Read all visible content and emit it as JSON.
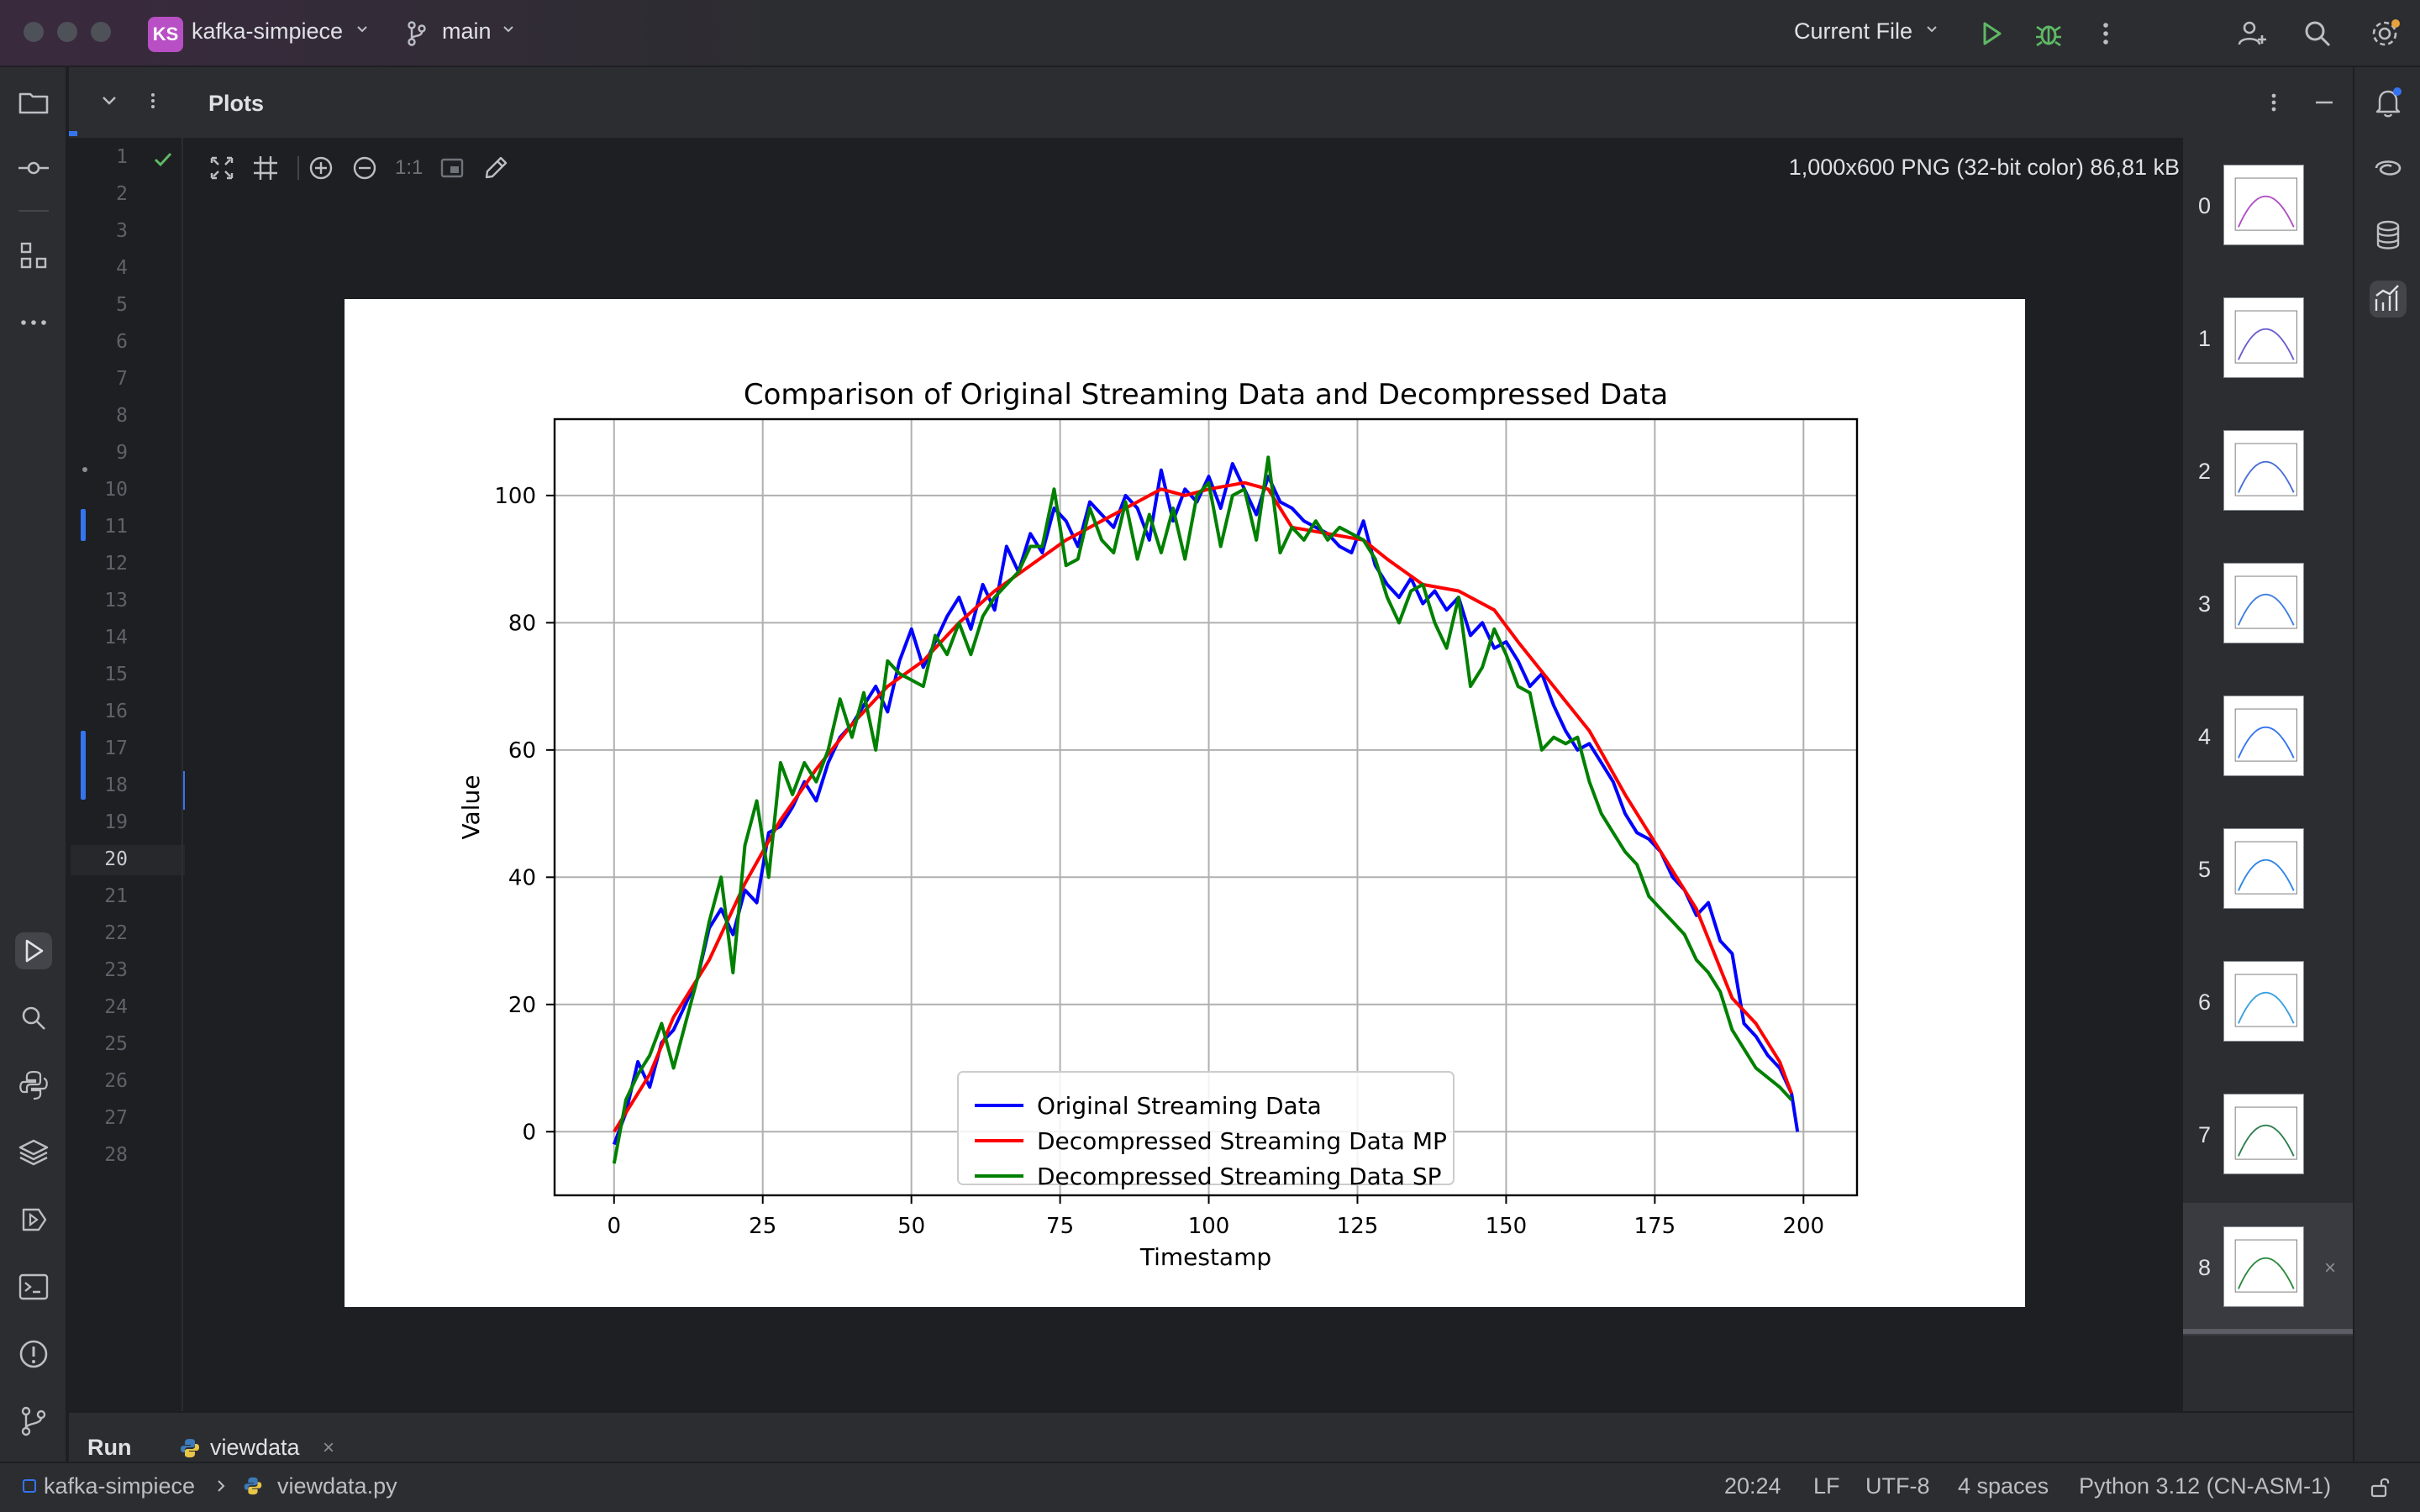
{
  "titlebar": {
    "project_badge": "KS",
    "project_name": "kafka-simpiece",
    "branch": "main",
    "run_config": "Current File"
  },
  "editor": {
    "line_numbers": [
      "1",
      "2",
      "3",
      "4",
      "5",
      "6",
      "7",
      "8",
      "9",
      "10",
      "11",
      "12",
      "13",
      "14",
      "15",
      "16",
      "17",
      "18",
      "19",
      "20",
      "21",
      "22",
      "23",
      "24",
      "25",
      "26",
      "27",
      "28"
    ],
    "current_line": "20"
  },
  "plots": {
    "title": "Plots",
    "zoom_reset_label": "1:1",
    "image_info": "1,000x600 PNG (32-bit color) 86,81 kB",
    "thumbnails": [
      "0",
      "1",
      "2",
      "3",
      "4",
      "5",
      "6",
      "7",
      "8"
    ],
    "selected_thumbnail": "8"
  },
  "run_panel": {
    "label": "Run",
    "tab": "viewdata"
  },
  "statusbar": {
    "project": "kafka-simpiece",
    "file": "viewdata.py",
    "position": "20:24",
    "line_sep": "LF",
    "encoding": "UTF-8",
    "indent": "4 spaces",
    "interpreter": "Python 3.12 (CN-ASM-1)"
  },
  "chart_data": {
    "type": "line",
    "title": "Comparison of Original Streaming Data and Decompressed Data",
    "xlabel": "Timestamp",
    "ylabel": "Value",
    "xlim": [
      -10,
      209
    ],
    "ylim": [
      -10,
      112
    ],
    "xticks": [
      0,
      25,
      50,
      75,
      100,
      125,
      150,
      175,
      200
    ],
    "yticks": [
      0,
      20,
      40,
      60,
      80,
      100
    ],
    "grid": true,
    "legend_position": "lower center",
    "series": [
      {
        "name": "Original Streaming Data",
        "color": "#0000ff",
        "x": [
          0,
          2,
          4,
          6,
          8,
          10,
          12,
          14,
          16,
          18,
          20,
          22,
          24,
          26,
          28,
          30,
          32,
          34,
          36,
          38,
          40,
          42,
          44,
          46,
          48,
          50,
          52,
          54,
          56,
          58,
          60,
          62,
          64,
          66,
          68,
          70,
          72,
          74,
          76,
          78,
          80,
          82,
          84,
          86,
          88,
          90,
          92,
          94,
          96,
          98,
          100,
          102,
          104,
          106,
          108,
          110,
          112,
          114,
          116,
          118,
          120,
          122,
          124,
          126,
          128,
          130,
          132,
          134,
          136,
          138,
          140,
          142,
          144,
          146,
          148,
          150,
          152,
          154,
          156,
          158,
          160,
          162,
          164,
          166,
          168,
          170,
          172,
          174,
          176,
          178,
          180,
          182,
          184,
          186,
          188,
          190,
          192,
          194,
          196,
          198,
          199
        ],
        "y": [
          -2,
          3,
          11,
          7,
          14,
          16,
          20,
          24,
          32,
          35,
          31,
          38,
          36,
          47,
          48,
          51,
          55,
          52,
          58,
          62,
          64,
          67,
          70,
          66,
          74,
          79,
          73,
          77,
          81,
          84,
          79,
          86,
          82,
          92,
          88,
          94,
          91,
          98,
          96,
          92,
          99,
          97,
          95,
          100,
          98,
          93,
          104,
          96,
          101,
          99,
          103,
          98,
          105,
          101,
          97,
          103,
          99,
          98,
          96,
          95,
          94,
          92,
          91,
          96,
          89,
          86,
          84,
          87,
          83,
          85,
          82,
          84,
          78,
          80,
          76,
          77,
          74,
          70,
          72,
          67,
          63,
          60,
          61,
          58,
          55,
          50,
          47,
          46,
          44,
          40,
          38,
          34,
          36,
          30,
          28,
          17,
          15,
          12,
          10,
          6,
          0
        ]
      },
      {
        "name": "Decompressed Streaming Data MP",
        "color": "#ff0000",
        "x": [
          0,
          6,
          10,
          16,
          22,
          28,
          34,
          40,
          46,
          52,
          58,
          64,
          70,
          76,
          82,
          88,
          92,
          96,
          100,
          106,
          110,
          114,
          120,
          126,
          130,
          136,
          142,
          148,
          152,
          158,
          164,
          170,
          176,
          182,
          188,
          192,
          196,
          198
        ],
        "y": [
          0,
          9,
          18,
          27,
          39,
          49,
          57,
          64,
          70,
          74,
          80,
          85,
          89,
          93,
          96,
          99,
          101,
          100,
          101,
          102,
          101,
          95,
          94,
          93,
          90,
          86,
          85,
          82,
          77,
          70,
          63,
          53,
          44,
          35,
          21,
          17,
          11,
          6
        ]
      },
      {
        "name": "Decompressed Streaming Data SP",
        "color": "#008000",
        "x": [
          0,
          2,
          4,
          6,
          8,
          10,
          12,
          14,
          16,
          18,
          20,
          22,
          24,
          26,
          28,
          30,
          32,
          34,
          36,
          38,
          40,
          42,
          44,
          46,
          48,
          50,
          52,
          54,
          56,
          58,
          60,
          62,
          64,
          66,
          68,
          70,
          72,
          74,
          76,
          78,
          80,
          82,
          84,
          86,
          88,
          90,
          92,
          94,
          96,
          98,
          100,
          102,
          104,
          106,
          108,
          110,
          112,
          114,
          116,
          118,
          120,
          122,
          124,
          126,
          128,
          130,
          132,
          134,
          136,
          138,
          140,
          142,
          144,
          146,
          148,
          150,
          152,
          154,
          156,
          158,
          160,
          162,
          164,
          166,
          168,
          170,
          172,
          174,
          176,
          178,
          180,
          182,
          184,
          186,
          188,
          192,
          196,
          198
        ],
        "y": [
          -5,
          5,
          9,
          12,
          17,
          10,
          17,
          24,
          33,
          40,
          25,
          45,
          52,
          40,
          58,
          53,
          58,
          55,
          60,
          68,
          62,
          69,
          60,
          74,
          72,
          71,
          70,
          78,
          75,
          80,
          75,
          81,
          84,
          86,
          88,
          92,
          92,
          101,
          89,
          90,
          98,
          93,
          91,
          99,
          90,
          97,
          91,
          98,
          90,
          100,
          102,
          92,
          100,
          101,
          93,
          106,
          91,
          95,
          93,
          96,
          93,
          95,
          94,
          93,
          90,
          84,
          80,
          85,
          86,
          80,
          76,
          84,
          70,
          73,
          79,
          75,
          70,
          69,
          60,
          62,
          61,
          62,
          55,
          50,
          47,
          44,
          42,
          37,
          35,
          33,
          31,
          27,
          25,
          22,
          16,
          10,
          7,
          5
        ]
      }
    ]
  }
}
